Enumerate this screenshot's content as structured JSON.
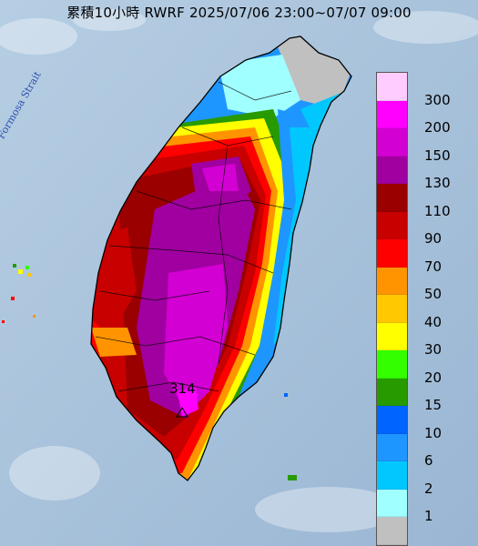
{
  "title": "累積10小時 RWRF 2025/07/06 23:00~07/07 09:00",
  "strait_label": "Formosa Strait",
  "max_value_label": "314",
  "legend": {
    "labels": [
      "300",
      "200",
      "150",
      "130",
      "110",
      "90",
      "70",
      "50",
      "40",
      "30",
      "20",
      "15",
      "10",
      "6",
      "2",
      "1"
    ],
    "colors": [
      "#ffccff",
      "#ff00ff",
      "#d300d3",
      "#a000a0",
      "#9a0000",
      "#c80000",
      "#ff0000",
      "#ff9400",
      "#ffc800",
      "#ffff00",
      "#33ff00",
      "#279a00",
      "#0064ff",
      "#1e96ff",
      "#00c8ff",
      "#a0ffff",
      "#c0c0c0"
    ]
  },
  "colors": {
    "sea": "#a9c3dc",
    "land_dry": "#c0c0c0"
  }
}
